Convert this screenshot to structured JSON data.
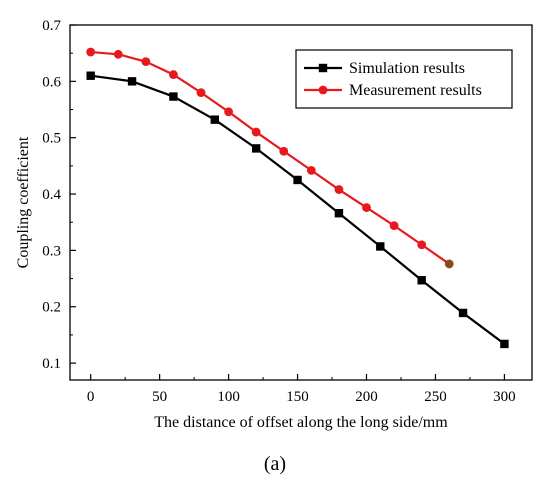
{
  "chart_data": {
    "type": "line",
    "xlabel": "The distance of offset along the long side/mm",
    "ylabel": "Coupling coefficient",
    "caption": "(a)",
    "xlim": [
      -15,
      320
    ],
    "ylim": [
      0.07,
      0.7
    ],
    "xticks": [
      0,
      50,
      100,
      150,
      200,
      250,
      300
    ],
    "yticks": [
      0.1,
      0.2,
      0.3,
      0.4,
      0.5,
      0.6,
      0.7
    ],
    "grid": false,
    "legend_position": "top-right",
    "series": [
      {
        "name": "Simulation results",
        "color": "#000000",
        "marker": "square",
        "x": [
          0,
          30,
          60,
          90,
          120,
          150,
          180,
          210,
          240,
          270,
          300
        ],
        "y": [
          0.61,
          0.6,
          0.573,
          0.532,
          0.481,
          0.425,
          0.366,
          0.307,
          0.247,
          0.189,
          0.134
        ]
      },
      {
        "name": "Measurement results",
        "color": "#e8191c",
        "marker": "circle",
        "x": [
          0,
          20,
          40,
          60,
          80,
          100,
          120,
          140,
          160,
          180,
          200,
          220,
          240,
          260
        ],
        "y": [
          0.652,
          0.648,
          0.635,
          0.612,
          0.58,
          0.546,
          0.51,
          0.476,
          0.442,
          0.408,
          0.376,
          0.344,
          0.31,
          0.276
        ]
      }
    ]
  }
}
